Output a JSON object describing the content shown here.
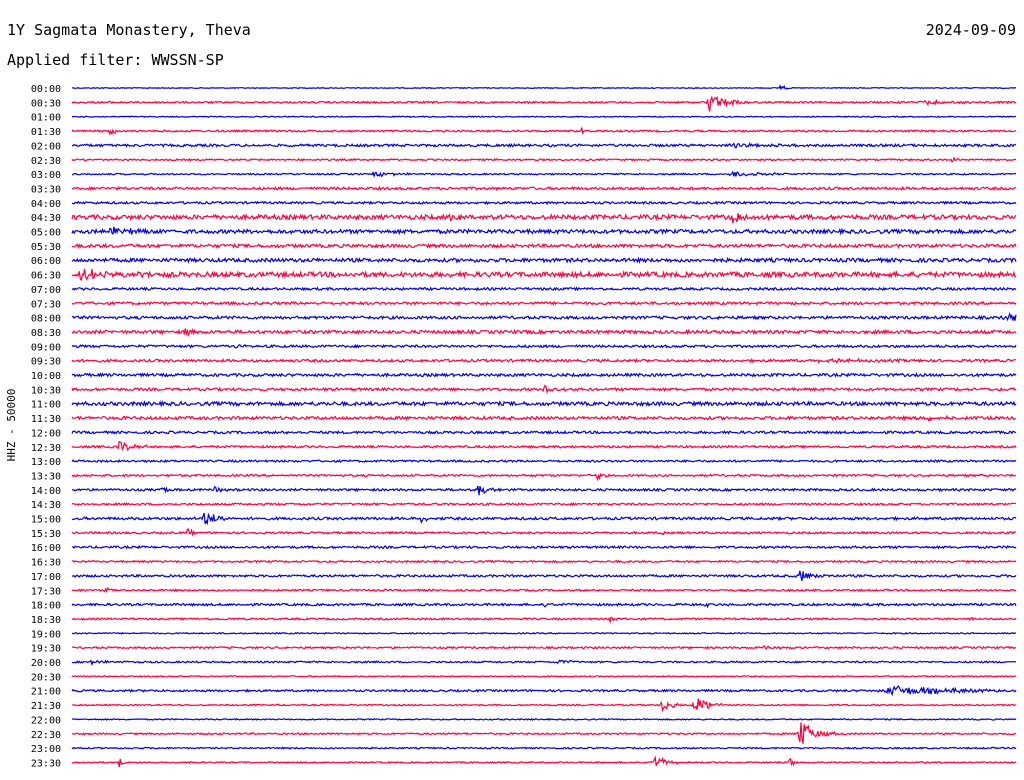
{
  "header": {
    "station": "1Y Sagmata Monastery, Theva",
    "date": "2024-09-09",
    "filter": "Applied filter: WWSSN-SP"
  },
  "colors": {
    "even": "#0000e0",
    "odd": "#ff003c"
  },
  "chart_data": {
    "type": "line",
    "title": "1Y Sagmata Monastery, Theva",
    "ylabel": "HHZ - 50000",
    "grid": false,
    "legend": "none",
    "rows": [
      "00:00",
      "00:30",
      "01:00",
      "01:30",
      "02:00",
      "02:30",
      "03:00",
      "03:30",
      "04:00",
      "04:30",
      "05:00",
      "05:30",
      "06:00",
      "06:30",
      "07:00",
      "07:30",
      "08:00",
      "08:30",
      "09:00",
      "09:30",
      "10:00",
      "10:30",
      "11:00",
      "11:30",
      "12:00",
      "12:30",
      "13:00",
      "13:30",
      "14:00",
      "14:30",
      "15:00",
      "15:30",
      "16:00",
      "16:30",
      "17:00",
      "17:30",
      "18:00",
      "18:30",
      "19:00",
      "19:30",
      "20:00",
      "20:30",
      "21:00",
      "21:30",
      "22:00",
      "22:30",
      "23:00",
      "23:30"
    ],
    "row_noise": [
      0.4,
      0.9,
      0.5,
      0.9,
      1.2,
      0.8,
      0.7,
      1.3,
      1.1,
      2.2,
      1.9,
      1.6,
      1.8,
      2.4,
      1.2,
      1.3,
      1.4,
      1.6,
      1.2,
      1.3,
      1.4,
      1.3,
      1.8,
      1.5,
      1.2,
      1.1,
      1.0,
      1.0,
      1.1,
      1.0,
      1.3,
      1.0,
      1.1,
      0.9,
      1.1,
      0.9,
      1.1,
      0.9,
      0.6,
      0.9,
      0.8,
      0.6,
      1.0,
      0.7,
      0.6,
      0.8,
      0.7,
      0.7
    ],
    "events": [
      {
        "row": 0,
        "t": 0.75,
        "amp": 5,
        "dur": 0.004
      },
      {
        "row": 1,
        "t": 0.675,
        "amp": 10,
        "dur": 0.015
      },
      {
        "row": 1,
        "t": 0.9,
        "amp": 2,
        "dur": 0.03
      },
      {
        "row": 3,
        "t": 0.04,
        "amp": 3,
        "dur": 0.01
      },
      {
        "row": 3,
        "t": 0.54,
        "amp": 3,
        "dur": 0.004
      },
      {
        "row": 4,
        "t": 0.7,
        "amp": 2,
        "dur": 0.03
      },
      {
        "row": 5,
        "t": 0.93,
        "amp": 2.5,
        "dur": 0.01
      },
      {
        "row": 6,
        "t": 0.32,
        "amp": 3,
        "dur": 0.02
      },
      {
        "row": 6,
        "t": 0.7,
        "amp": 3,
        "dur": 0.03
      },
      {
        "row": 9,
        "t": 0.4,
        "amp": 8,
        "dur": 0.012
      },
      {
        "row": 9,
        "t": 0.7,
        "amp": 6,
        "dur": 0.01
      },
      {
        "row": 10,
        "t": 0.04,
        "amp": 4,
        "dur": 0.03
      },
      {
        "row": 13,
        "t": 0.01,
        "amp": 6,
        "dur": 0.03
      },
      {
        "row": 16,
        "t": 0.99,
        "amp": 4,
        "dur": 0.02
      },
      {
        "row": 17,
        "t": 0.12,
        "amp": 5,
        "dur": 0.005
      },
      {
        "row": 18,
        "t": 0.17,
        "amp": 2,
        "dur": 0.01
      },
      {
        "row": 19,
        "t": 0.79,
        "amp": 2,
        "dur": 0.04
      },
      {
        "row": 21,
        "t": 0.5,
        "amp": 5,
        "dur": 0.012
      },
      {
        "row": 23,
        "t": 0.9,
        "amp": 2,
        "dur": 0.03
      },
      {
        "row": 25,
        "t": 0.05,
        "amp": 6,
        "dur": 0.012
      },
      {
        "row": 27,
        "t": 0.555,
        "amp": 6,
        "dur": 0.005
      },
      {
        "row": 28,
        "t": 0.095,
        "amp": 4,
        "dur": 0.004
      },
      {
        "row": 28,
        "t": 0.15,
        "amp": 6,
        "dur": 0.006
      },
      {
        "row": 28,
        "t": 0.43,
        "amp": 7,
        "dur": 0.008
      },
      {
        "row": 30,
        "t": 0.14,
        "amp": 7,
        "dur": 0.015
      },
      {
        "row": 30,
        "t": 0.37,
        "amp": 3,
        "dur": 0.008
      },
      {
        "row": 31,
        "t": 0.12,
        "amp": 5,
        "dur": 0.006
      },
      {
        "row": 31,
        "t": 0.62,
        "amp": 5,
        "dur": 0.004
      },
      {
        "row": 34,
        "t": 0.77,
        "amp": 7,
        "dur": 0.012
      },
      {
        "row": 35,
        "t": 0.035,
        "amp": 3,
        "dur": 0.006
      },
      {
        "row": 36,
        "t": 0.5,
        "amp": 3,
        "dur": 0.004
      },
      {
        "row": 36,
        "t": 0.67,
        "amp": 3,
        "dur": 0.004
      },
      {
        "row": 37,
        "t": 0.57,
        "amp": 3,
        "dur": 0.006
      },
      {
        "row": 37,
        "t": 0.95,
        "amp": 3,
        "dur": 0.006
      },
      {
        "row": 39,
        "t": 0.73,
        "amp": 2,
        "dur": 0.02
      },
      {
        "row": 40,
        "t": 0.515,
        "amp": 4,
        "dur": 0.008
      },
      {
        "row": 40,
        "t": 0.02,
        "amp": 2,
        "dur": 0.015
      },
      {
        "row": 42,
        "t": 0.87,
        "amp": 5,
        "dur": 0.06
      },
      {
        "row": 43,
        "t": 0.625,
        "amp": 7,
        "dur": 0.01
      },
      {
        "row": 43,
        "t": 0.66,
        "amp": 9,
        "dur": 0.014
      },
      {
        "row": 45,
        "t": 0.77,
        "amp": 26,
        "dur": 0.005
      },
      {
        "row": 45,
        "t": 0.775,
        "amp": 9,
        "dur": 0.015
      },
      {
        "row": 47,
        "t": 0.05,
        "amp": 5,
        "dur": 0.004
      },
      {
        "row": 47,
        "t": 0.615,
        "amp": 8,
        "dur": 0.012
      },
      {
        "row": 47,
        "t": 0.76,
        "amp": 7,
        "dur": 0.004
      },
      {
        "row": 47,
        "t": 0.9,
        "amp": 2,
        "dur": 0.004
      }
    ]
  }
}
